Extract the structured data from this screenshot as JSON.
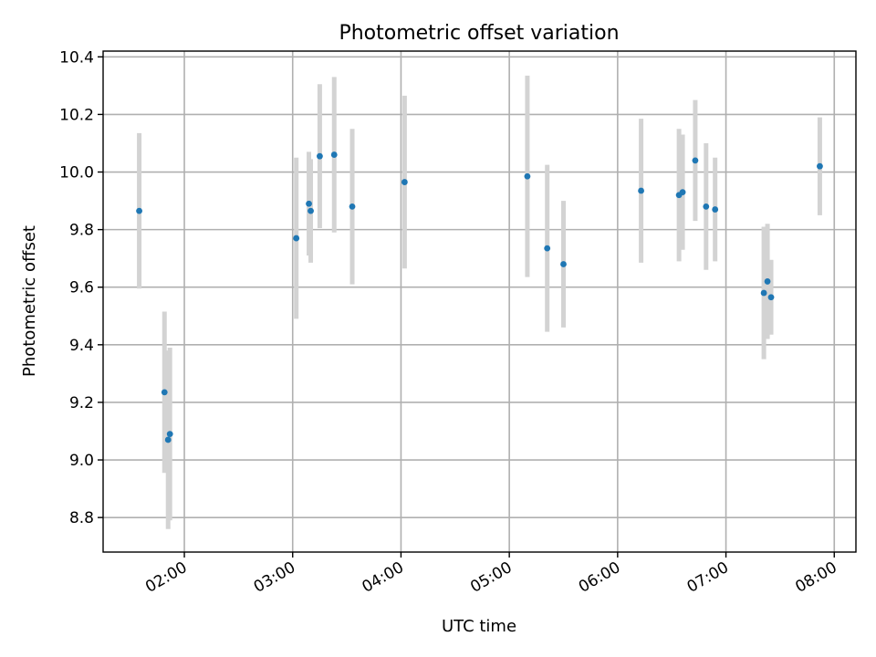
{
  "chart_data": {
    "type": "scatter",
    "title": "Photometric offset variation",
    "xlabel": "UTC time",
    "ylabel": "Photometric offset",
    "grid": true,
    "x_tick_labels": [
      "02:00",
      "03:00",
      "04:00",
      "05:00",
      "06:00",
      "07:00",
      "08:00"
    ],
    "y_ticks": [
      8.8,
      9.0,
      9.2,
      9.4,
      9.6,
      9.8,
      10.0,
      10.2,
      10.4
    ],
    "y_tick_labels": [
      "8.8",
      "9.0",
      "9.2",
      "9.4",
      "9.6",
      "9.8",
      "10.0",
      "10.2",
      "10.4"
    ],
    "xlim": [
      "01:15",
      "08:12"
    ],
    "ylim": [
      8.68,
      10.42
    ],
    "colors": {
      "points": "#1f77b4",
      "errorbars": "#d3d3d3"
    },
    "points": [
      {
        "x": "01:35",
        "y": 9.865,
        "err": 0.27
      },
      {
        "x": "01:49",
        "y": 9.235,
        "err": 0.28
      },
      {
        "x": "01:51",
        "y": 9.07,
        "err": 0.31
      },
      {
        "x": "01:52",
        "y": 9.09,
        "err": 0.3
      },
      {
        "x": "03:02",
        "y": 9.77,
        "err": 0.28
      },
      {
        "x": "03:09",
        "y": 9.89,
        "err": 0.18
      },
      {
        "x": "03:10",
        "y": 9.865,
        "err": 0.18
      },
      {
        "x": "03:15",
        "y": 10.055,
        "err": 0.25
      },
      {
        "x": "03:23",
        "y": 10.06,
        "err": 0.27
      },
      {
        "x": "03:33",
        "y": 9.88,
        "err": 0.27
      },
      {
        "x": "04:02",
        "y": 9.965,
        "err": 0.3
      },
      {
        "x": "05:10",
        "y": 9.985,
        "err": 0.35
      },
      {
        "x": "05:21",
        "y": 9.735,
        "err": 0.29
      },
      {
        "x": "05:30",
        "y": 9.68,
        "err": 0.22
      },
      {
        "x": "06:13",
        "y": 9.935,
        "err": 0.25
      },
      {
        "x": "06:34",
        "y": 9.92,
        "err": 0.23
      },
      {
        "x": "06:36",
        "y": 9.93,
        "err": 0.2
      },
      {
        "x": "06:43",
        "y": 10.04,
        "err": 0.21
      },
      {
        "x": "06:49",
        "y": 9.88,
        "err": 0.22
      },
      {
        "x": "06:54",
        "y": 9.87,
        "err": 0.18
      },
      {
        "x": "07:21",
        "y": 9.58,
        "err": 0.23
      },
      {
        "x": "07:23",
        "y": 9.62,
        "err": 0.2
      },
      {
        "x": "07:25",
        "y": 9.565,
        "err": 0.13
      },
      {
        "x": "07:52",
        "y": 10.02,
        "err": 0.17
      }
    ]
  }
}
